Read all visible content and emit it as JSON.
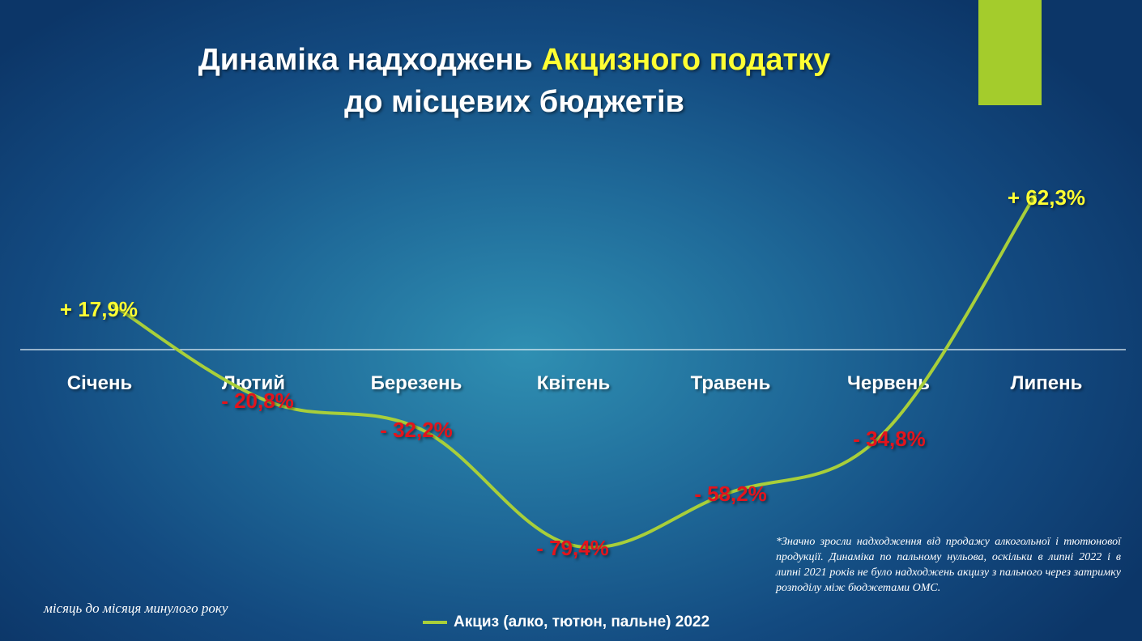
{
  "title": {
    "line1_part1": "Динаміка надходжень",
    "line1_highlight": "Акцизного податку",
    "line2": "до місцевих бюджетів"
  },
  "colors": {
    "title_highlight": "#ffff33",
    "series_line": "#a8cf3a",
    "positive_label": "#ffff33",
    "negative_label": "#e3141c",
    "accent_tab": "#a4cc2c"
  },
  "chart_data": {
    "type": "line",
    "categories": [
      "Січень",
      "Лютий",
      "Березень",
      "Квітень",
      "Травень",
      "Червень",
      "Липень"
    ],
    "series": [
      {
        "name": "Акциз (алко, тютюн, пальне) 2022",
        "values": [
          17.9,
          -20.8,
          -32.2,
          -79.4,
          -58.2,
          -34.8,
          62.3
        ],
        "labels": [
          "+ 17,9%",
          "- 20,8%",
          "- 32,2%",
          "- 79,4%",
          "- 58,2%",
          "- 34,8%",
          "+ 62,3%"
        ]
      }
    ],
    "ylabel": "",
    "xlabel": "",
    "grid": false,
    "legend_position": "bottom"
  },
  "footnote_left": "місяць до місяця минулого року",
  "note": "*Значно зросли надходження від продажу алкогольної і тютюнової продукції. Динаміка по пальному нульова, оскільки в липні 2022 і в липні 2021 років не було надходжень акцизу з пального через затримку розподілу між бюджетами ОМС.",
  "legend_label": "Акциз (алко, тютюн, пальне) 2022"
}
